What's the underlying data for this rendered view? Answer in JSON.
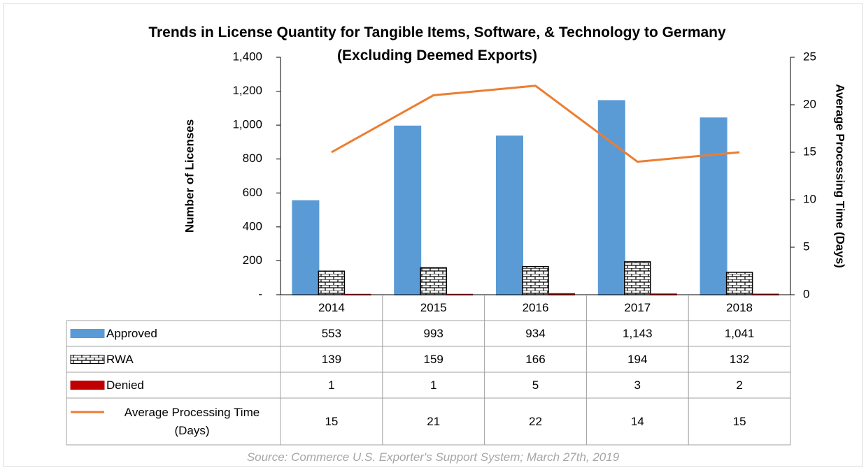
{
  "chart_data": {
    "type": "bar",
    "title": "Trends in License Quantity for Tangible Items, Software, & Technology to Germany (Excluding Deemed Exports)",
    "y_label": "Number of Licenses",
    "y2_label": "Average Processing Time (Days)",
    "source": "Source: Commerce U.S. Exporter's Support System; March 27th, 2019",
    "categories": [
      "2014",
      "2015",
      "2016",
      "2017",
      "2018"
    ],
    "ylim": [
      0,
      1400
    ],
    "yticks": [
      {
        "value": 0,
        "label": "-"
      },
      200,
      400,
      600,
      800,
      {
        "value": 1000,
        "label": "1,000"
      },
      {
        "value": 1200,
        "label": "1,200"
      },
      {
        "value": 1400,
        "label": "1,400"
      }
    ],
    "y2lim": [
      0,
      25
    ],
    "y2ticks": [
      0,
      5,
      10,
      15,
      20,
      25
    ],
    "series": [
      {
        "name": "Approved",
        "color": "#5b9bd5",
        "values": [
          553,
          993,
          934,
          1143,
          1041
        ],
        "value_labels": [
          "553",
          "993",
          "934",
          "1,143",
          "1,041"
        ]
      },
      {
        "name": "RWA",
        "color": "brick",
        "values": [
          139,
          159,
          166,
          194,
          132
        ]
      },
      {
        "name": "Denied",
        "color": "#c00000",
        "values": [
          1,
          1,
          5,
          3,
          2
        ]
      },
      {
        "name": "Average Processing Time (Days)",
        "color": "#ed7d31",
        "type": "line",
        "axis": "y2",
        "values": [
          15,
          21,
          22,
          14,
          15
        ]
      }
    ]
  }
}
